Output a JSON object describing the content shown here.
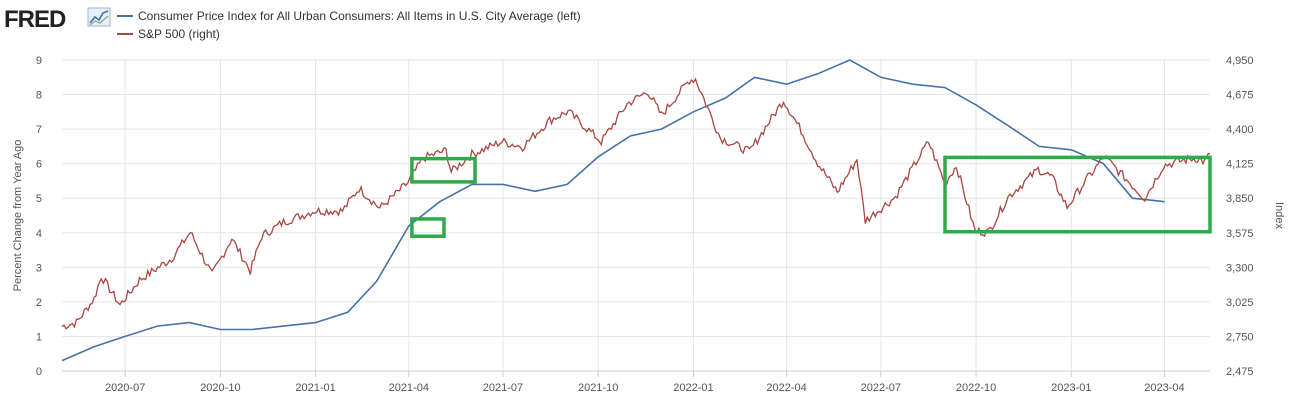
{
  "logo": {
    "text": "FRED"
  },
  "legend": [
    {
      "label": "Consumer Price Index for All Urban Consumers: All Items in U.S. City Average (left)",
      "color": "#4572a7"
    },
    {
      "label": "S&P 500 (right)",
      "color": "#aa4643"
    }
  ],
  "chart_data": {
    "type": "line",
    "y_left": {
      "label": "Percent Change from Year Ago",
      "range": [
        0,
        9
      ],
      "ticks": [
        "0",
        "1",
        "2",
        "3",
        "4",
        "5",
        "6",
        "7",
        "8",
        "9"
      ]
    },
    "y_right": {
      "label": "Index",
      "range": [
        2475,
        4950
      ],
      "ticks": [
        "2,475",
        "2,750",
        "3,025",
        "3,300",
        "3,575",
        "3,850",
        "4,125",
        "4,400",
        "4,675",
        "4,950"
      ]
    },
    "x_ticks": [
      "2020-07",
      "2020-10",
      "2021-01",
      "2021-04",
      "2021-07",
      "2021-10",
      "2022-01",
      "2022-04",
      "2022-07",
      "2022-10",
      "2023-01",
      "2023-04"
    ],
    "x_range": [
      "2020-05-01",
      "2023-05-15"
    ],
    "grid": true,
    "series": [
      {
        "name": "Consumer Price Index for All Urban Consumers: All Items in U.S. City Average",
        "axis": "left",
        "color": "#4572a7",
        "points": [
          [
            "2020-05-01",
            0.3
          ],
          [
            "2020-06-01",
            0.7
          ],
          [
            "2020-07-01",
            1.0
          ],
          [
            "2020-08-01",
            1.3
          ],
          [
            "2020-09-01",
            1.4
          ],
          [
            "2020-10-01",
            1.2
          ],
          [
            "2020-11-01",
            1.2
          ],
          [
            "2020-12-01",
            1.3
          ],
          [
            "2021-01-01",
            1.4
          ],
          [
            "2021-02-01",
            1.7
          ],
          [
            "2021-03-01",
            2.6
          ],
          [
            "2021-04-01",
            4.2
          ],
          [
            "2021-05-01",
            4.9
          ],
          [
            "2021-06-01",
            5.4
          ],
          [
            "2021-07-01",
            5.4
          ],
          [
            "2021-08-01",
            5.2
          ],
          [
            "2021-09-01",
            5.4
          ],
          [
            "2021-10-01",
            6.2
          ],
          [
            "2021-11-01",
            6.8
          ],
          [
            "2021-12-01",
            7.0
          ],
          [
            "2022-01-01",
            7.5
          ],
          [
            "2022-02-01",
            7.9
          ],
          [
            "2022-03-01",
            8.5
          ],
          [
            "2022-04-01",
            8.3
          ],
          [
            "2022-05-01",
            8.6
          ],
          [
            "2022-06-01",
            9.0
          ],
          [
            "2022-07-01",
            8.5
          ],
          [
            "2022-08-01",
            8.3
          ],
          [
            "2022-09-01",
            8.2
          ],
          [
            "2022-10-01",
            7.7
          ],
          [
            "2022-11-01",
            7.1
          ],
          [
            "2022-12-01",
            6.5
          ],
          [
            "2023-01-01",
            6.4
          ],
          [
            "2023-02-01",
            6.0
          ],
          [
            "2023-03-01",
            5.0
          ],
          [
            "2023-04-01",
            4.9
          ]
        ]
      },
      {
        "name": "S&P 500",
        "axis": "right",
        "color": "#aa4643",
        "points": [
          [
            "2020-05-01",
            2830
          ],
          [
            "2020-05-15",
            2860
          ],
          [
            "2020-06-01",
            3050
          ],
          [
            "2020-06-08",
            3230
          ],
          [
            "2020-06-26",
            3000
          ],
          [
            "2020-07-15",
            3200
          ],
          [
            "2020-08-15",
            3370
          ],
          [
            "2020-09-02",
            3580
          ],
          [
            "2020-09-23",
            3240
          ],
          [
            "2020-10-12",
            3530
          ],
          [
            "2020-10-30",
            3270
          ],
          [
            "2020-11-10",
            3550
          ],
          [
            "2020-12-01",
            3660
          ],
          [
            "2020-12-31",
            3750
          ],
          [
            "2021-01-27",
            3750
          ],
          [
            "2021-02-12",
            3930
          ],
          [
            "2021-03-04",
            3770
          ],
          [
            "2021-03-31",
            3970
          ],
          [
            "2021-04-15",
            4170
          ],
          [
            "2021-05-07",
            4230
          ],
          [
            "2021-05-12",
            4060
          ],
          [
            "2021-06-01",
            4200
          ],
          [
            "2021-06-30",
            4300
          ],
          [
            "2021-07-20",
            4260
          ],
          [
            "2021-08-15",
            4470
          ],
          [
            "2021-09-02",
            4540
          ],
          [
            "2021-10-04",
            4300
          ],
          [
            "2021-10-29",
            4600
          ],
          [
            "2021-11-18",
            4700
          ],
          [
            "2021-12-01",
            4510
          ],
          [
            "2021-12-28",
            4790
          ],
          [
            "2022-01-03",
            4800
          ],
          [
            "2022-01-27",
            4330
          ],
          [
            "2022-02-24",
            4220
          ],
          [
            "2022-03-29",
            4630
          ],
          [
            "2022-04-15",
            4390
          ],
          [
            "2022-05-01",
            4130
          ],
          [
            "2022-05-20",
            3900
          ],
          [
            "2022-06-08",
            4160
          ],
          [
            "2022-06-16",
            3670
          ],
          [
            "2022-07-15",
            3860
          ],
          [
            "2022-08-16",
            4300
          ],
          [
            "2022-09-01",
            3970
          ],
          [
            "2022-09-12",
            4110
          ],
          [
            "2022-09-30",
            3590
          ],
          [
            "2022-10-13",
            3580
          ],
          [
            "2022-11-01",
            3860
          ],
          [
            "2022-11-30",
            4080
          ],
          [
            "2022-12-13",
            4020
          ],
          [
            "2022-12-28",
            3780
          ],
          [
            "2023-01-15",
            3990
          ],
          [
            "2023-02-02",
            4180
          ],
          [
            "2023-03-01",
            3950
          ],
          [
            "2023-03-13",
            3850
          ],
          [
            "2023-03-31",
            4110
          ],
          [
            "2023-04-18",
            4150
          ],
          [
            "2023-05-01",
            4170
          ],
          [
            "2023-05-10",
            4140
          ],
          [
            "2023-05-15",
            4200
          ]
        ]
      }
    ],
    "annotations": [
      {
        "shape": "rect",
        "color": "#2eaa4a",
        "x": [
          "2021-04-04",
          "2021-06-04"
        ],
        "axis": "right",
        "y": [
          3980,
          4165
        ]
      },
      {
        "shape": "rect",
        "color": "#2eaa4a",
        "x": [
          "2021-04-04",
          "2021-05-05"
        ],
        "axis": "left",
        "y": [
          3.9,
          4.4
        ]
      },
      {
        "shape": "rect",
        "color": "#2eaa4a",
        "x": [
          "2022-09-01",
          "2023-05-15"
        ],
        "axis": "right",
        "y": [
          3583,
          4175
        ]
      }
    ]
  }
}
